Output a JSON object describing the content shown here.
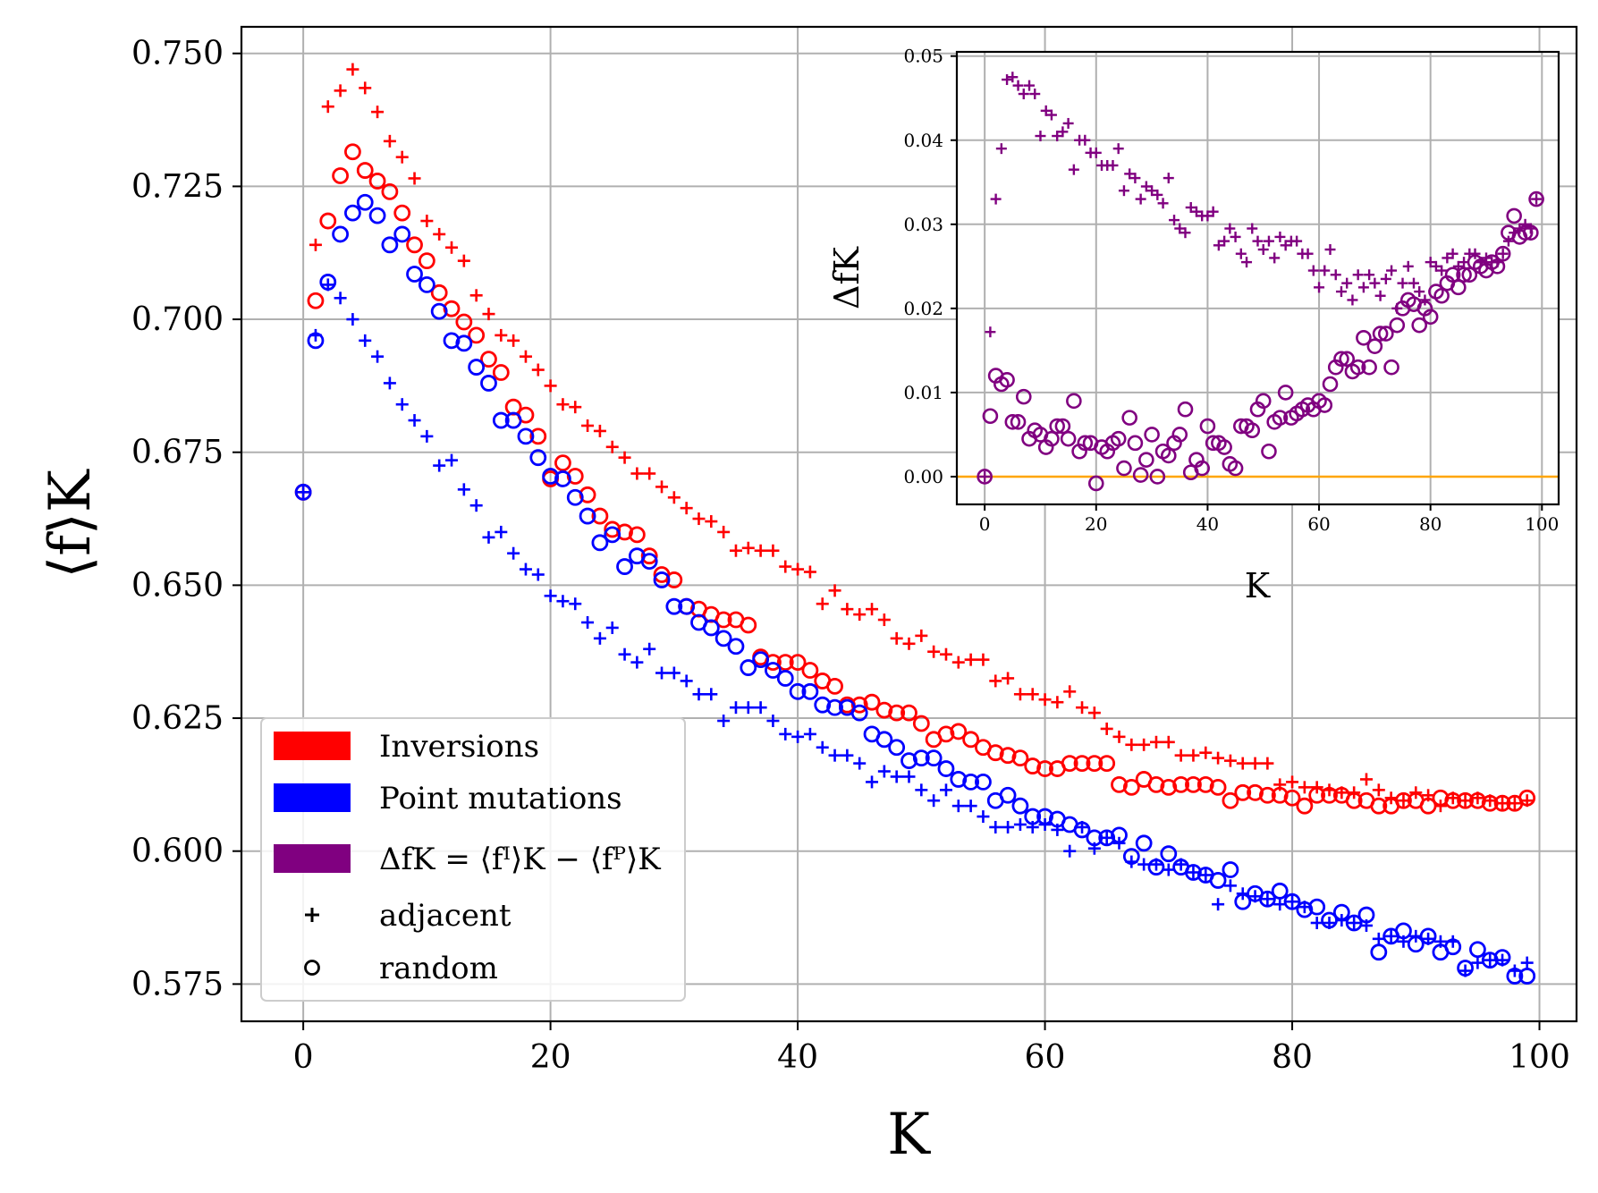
{
  "colors": {
    "inversions": "#ff0000",
    "point_mutations": "#0000ff",
    "difference": "#800080",
    "zero_line": "#ffa500"
  },
  "chart_data": [
    {
      "type": "scatter",
      "xlabel": "K",
      "ylabel": "⟨f⟩K",
      "xlim": [
        -5,
        103
      ],
      "ylim": [
        0.568,
        0.755
      ],
      "xticks": [
        "0",
        "20",
        "40",
        "60",
        "80",
        "100"
      ],
      "yticks": [
        "0.575",
        "0.600",
        "0.625",
        "0.650",
        "0.675",
        "0.700",
        "0.725",
        "0.750"
      ],
      "grid": true,
      "legend_position": "lower-left",
      "legend": [
        {
          "label": "Inversions",
          "marker": "patch",
          "color": "#ff0000"
        },
        {
          "label": "Point mutations",
          "marker": "patch",
          "color": "#0000ff"
        },
        {
          "label": "ΔfK = ⟨fᴵ⟩K − ⟨fᴾ⟩K",
          "marker": "patch",
          "color": "#800080"
        },
        {
          "label": "adjacent",
          "marker": "plus",
          "color": "#000000"
        },
        {
          "label": "random",
          "marker": "circle",
          "color": "#000000"
        }
      ],
      "x": [
        0,
        1,
        2,
        3,
        4,
        5,
        6,
        7,
        8,
        9,
        10,
        11,
        12,
        13,
        14,
        15,
        16,
        17,
        18,
        19,
        20,
        21,
        22,
        23,
        24,
        25,
        26,
        27,
        28,
        29,
        30,
        31,
        32,
        33,
        34,
        35,
        36,
        37,
        38,
        39,
        40,
        41,
        42,
        43,
        44,
        45,
        46,
        47,
        48,
        49,
        50,
        51,
        52,
        53,
        54,
        55,
        56,
        57,
        58,
        59,
        60,
        61,
        62,
        63,
        64,
        65,
        66,
        67,
        68,
        69,
        70,
        71,
        72,
        73,
        74,
        75,
        76,
        77,
        78,
        79,
        80,
        81,
        82,
        83,
        84,
        85,
        86,
        87,
        88,
        89,
        90,
        91,
        92,
        93,
        94,
        95,
        96,
        97,
        98,
        99
      ],
      "series": [
        {
          "color": "#ff0000",
          "marker": "plus",
          "values": [
            0.6675,
            0.714,
            0.74,
            0.743,
            0.747,
            0.7435,
            0.739,
            0.7335,
            0.7305,
            0.7265,
            0.7185,
            0.716,
            0.7135,
            0.711,
            0.7045,
            0.701,
            0.697,
            0.696,
            0.693,
            0.6905,
            0.6875,
            0.684,
            0.6835,
            0.68,
            0.679,
            0.676,
            0.674,
            0.671,
            0.671,
            0.6685,
            0.6665,
            0.6645,
            0.6625,
            0.662,
            0.66,
            0.6565,
            0.657,
            0.6565,
            0.6565,
            0.6535,
            0.653,
            0.6525,
            0.6465,
            0.649,
            0.6455,
            0.6445,
            0.6455,
            0.6435,
            0.64,
            0.639,
            0.6405,
            0.6375,
            0.637,
            0.6355,
            0.636,
            0.636,
            0.632,
            0.6325,
            0.6295,
            0.6295,
            0.6285,
            0.628,
            0.63,
            0.627,
            0.626,
            0.623,
            0.6215,
            0.62,
            0.62,
            0.6205,
            0.6205,
            0.618,
            0.618,
            0.6185,
            0.6175,
            0.617,
            0.6165,
            0.6165,
            0.6165,
            0.6125,
            0.613,
            0.612,
            0.612,
            0.6115,
            0.611,
            0.611,
            0.6135,
            0.6115,
            0.61,
            0.6095,
            0.611,
            0.6105,
            0.6085,
            0.61,
            0.6095,
            0.61,
            0.6095,
            0.609,
            0.609,
            0.6095
          ]
        },
        {
          "color": "#ff0000",
          "marker": "circle",
          "values": [
            0.6675,
            0.7035,
            0.7185,
            0.727,
            0.7315,
            0.728,
            0.726,
            0.724,
            0.72,
            0.714,
            0.711,
            0.705,
            0.702,
            0.6995,
            0.697,
            0.6925,
            0.69,
            0.6835,
            0.682,
            0.678,
            0.67,
            0.673,
            0.6705,
            0.667,
            0.663,
            0.6605,
            0.66,
            0.6595,
            0.6555,
            0.652,
            0.651,
            0.646,
            0.6455,
            0.6445,
            0.6435,
            0.6435,
            0.6425,
            0.6365,
            0.6355,
            0.6355,
            0.6355,
            0.634,
            0.632,
            0.631,
            0.6275,
            0.6275,
            0.628,
            0.6265,
            0.626,
            0.626,
            0.624,
            0.621,
            0.622,
            0.6225,
            0.621,
            0.6195,
            0.6185,
            0.618,
            0.6175,
            0.616,
            0.6155,
            0.6155,
            0.6165,
            0.6165,
            0.6165,
            0.6165,
            0.6125,
            0.612,
            0.6135,
            0.6125,
            0.612,
            0.6125,
            0.6125,
            0.6125,
            0.612,
            0.6095,
            0.611,
            0.611,
            0.6105,
            0.6105,
            0.61,
            0.6085,
            0.6105,
            0.6105,
            0.6105,
            0.6095,
            0.6095,
            0.6085,
            0.6085,
            0.6095,
            0.6095,
            0.6085,
            0.61,
            0.6095,
            0.6095,
            0.6095,
            0.609,
            0.609,
            0.609,
            0.61
          ]
        },
        {
          "color": "#0000ff",
          "marker": "plus",
          "values": [
            0.6675,
            0.697,
            0.7065,
            0.704,
            0.7,
            0.696,
            0.693,
            0.688,
            0.684,
            0.681,
            0.678,
            0.6725,
            0.6735,
            0.668,
            0.665,
            0.659,
            0.66,
            0.656,
            0.653,
            0.652,
            0.648,
            0.647,
            0.6465,
            0.643,
            0.64,
            0.642,
            0.637,
            0.6355,
            0.638,
            0.6335,
            0.6335,
            0.632,
            0.6295,
            0.6295,
            0.6245,
            0.627,
            0.627,
            0.627,
            0.6245,
            0.622,
            0.6215,
            0.622,
            0.6195,
            0.618,
            0.618,
            0.6165,
            0.613,
            0.615,
            0.614,
            0.614,
            0.6115,
            0.6095,
            0.6115,
            0.6085,
            0.6085,
            0.6065,
            0.6045,
            0.6045,
            0.605,
            0.6045,
            0.605,
            0.604,
            0.6,
            0.6045,
            0.6005,
            0.6025,
            0.6015,
            0.598,
            0.5975,
            0.5975,
            0.5965,
            0.5975,
            0.596,
            0.5955,
            0.59,
            0.5935,
            0.592,
            0.5915,
            0.591,
            0.59,
            0.5905,
            0.5895,
            0.5865,
            0.5865,
            0.587,
            0.5865,
            0.586,
            0.5835,
            0.584,
            0.583,
            0.584,
            0.5835,
            0.583,
            0.583,
            0.5775,
            0.579,
            0.5795,
            0.5795,
            0.5775,
            0.579
          ]
        },
        {
          "color": "#0000ff",
          "marker": "circle",
          "values": [
            0.6675,
            0.696,
            0.707,
            0.716,
            0.72,
            0.722,
            0.7195,
            0.714,
            0.716,
            0.7085,
            0.7065,
            0.7015,
            0.696,
            0.6955,
            0.691,
            0.688,
            0.681,
            0.681,
            0.678,
            0.674,
            0.6705,
            0.67,
            0.6665,
            0.663,
            0.658,
            0.6595,
            0.6535,
            0.6555,
            0.6545,
            0.651,
            0.646,
            0.646,
            0.643,
            0.642,
            0.64,
            0.6385,
            0.6345,
            0.636,
            0.634,
            0.6325,
            0.63,
            0.63,
            0.6275,
            0.627,
            0.627,
            0.626,
            0.622,
            0.621,
            0.6195,
            0.617,
            0.6175,
            0.6175,
            0.6155,
            0.6135,
            0.613,
            0.613,
            0.6095,
            0.6105,
            0.6085,
            0.6065,
            0.6065,
            0.606,
            0.605,
            0.604,
            0.6025,
            0.6025,
            0.603,
            0.599,
            0.6015,
            0.597,
            0.5995,
            0.597,
            0.596,
            0.5955,
            0.5945,
            0.5965,
            0.5905,
            0.592,
            0.591,
            0.5925,
            0.5905,
            0.589,
            0.5895,
            0.587,
            0.5885,
            0.5865,
            0.588,
            0.581,
            0.584,
            0.585,
            0.5825,
            0.584,
            0.581,
            0.582,
            0.578,
            0.5815,
            0.5795,
            0.58,
            0.5765,
            0.5765
          ]
        }
      ]
    },
    {
      "type": "scatter",
      "xlabel": "K",
      "ylabel": "ΔfK",
      "xlim": [
        -5,
        103
      ],
      "ylim": [
        -0.0033,
        0.0505
      ],
      "xticks": [
        "0",
        "20",
        "40",
        "60",
        "80",
        "100"
      ],
      "yticks": [
        "0.00",
        "0.01",
        "0.02",
        "0.03",
        "0.04",
        "0.05"
      ],
      "grid": true,
      "reference_line": {
        "y": 0.0,
        "color": "#ffa500"
      },
      "x": [
        0,
        1,
        2,
        3,
        4,
        5,
        6,
        7,
        8,
        9,
        10,
        11,
        12,
        13,
        14,
        15,
        16,
        17,
        18,
        19,
        20,
        21,
        22,
        23,
        24,
        25,
        26,
        27,
        28,
        29,
        30,
        31,
        32,
        33,
        34,
        35,
        36,
        37,
        38,
        39,
        40,
        41,
        42,
        43,
        44,
        45,
        46,
        47,
        48,
        49,
        50,
        51,
        52,
        53,
        54,
        55,
        56,
        57,
        58,
        59,
        60,
        61,
        62,
        63,
        64,
        65,
        66,
        67,
        68,
        69,
        70,
        71,
        72,
        73,
        74,
        75,
        76,
        77,
        78,
        79,
        80,
        81,
        82,
        83,
        84,
        85,
        86,
        87,
        88,
        89,
        90,
        91,
        92,
        93,
        94,
        95,
        96,
        97,
        98,
        99
      ],
      "series": [
        {
          "color": "#800080",
          "marker": "plus",
          "values": [
            0.0,
            0.0172,
            0.033,
            0.039,
            0.0472,
            0.0475,
            0.0465,
            0.0455,
            0.0465,
            0.0455,
            0.0405,
            0.0435,
            0.043,
            0.0405,
            0.041,
            0.042,
            0.0365,
            0.04,
            0.04,
            0.0385,
            0.0385,
            0.037,
            0.037,
            0.037,
            0.039,
            0.034,
            0.036,
            0.0355,
            0.033,
            0.0345,
            0.034,
            0.0335,
            0.0325,
            0.0355,
            0.0305,
            0.0295,
            0.029,
            0.032,
            0.0315,
            0.031,
            0.031,
            0.0315,
            0.0275,
            0.028,
            0.0295,
            0.0285,
            0.0265,
            0.0255,
            0.0295,
            0.028,
            0.027,
            0.028,
            0.026,
            0.0285,
            0.0275,
            0.028,
            0.028,
            0.0265,
            0.0265,
            0.0245,
            0.0225,
            0.0245,
            0.027,
            0.024,
            0.022,
            0.023,
            0.021,
            0.024,
            0.0225,
            0.024,
            0.023,
            0.0215,
            0.0235,
            0.0245,
            0.02,
            0.023,
            0.025,
            0.023,
            0.022,
            0.021,
            0.0255,
            0.025,
            0.0245,
            0.026,
            0.0265,
            0.025,
            0.0255,
            0.0265,
            0.0265,
            0.0255,
            0.026,
            0.0255,
            0.0255,
            0.0265,
            0.028,
            0.029,
            0.0295,
            0.03,
            0.0295,
            0.033
          ]
        },
        {
          "color": "#800080",
          "marker": "circle",
          "values": [
            0.0,
            0.0072,
            0.012,
            0.011,
            0.0115,
            0.0065,
            0.0065,
            0.0095,
            0.0045,
            0.0055,
            0.005,
            0.0035,
            0.0045,
            0.006,
            0.006,
            0.0045,
            0.009,
            0.003,
            0.004,
            0.004,
            -0.0008,
            0.0035,
            0.003,
            0.004,
            0.0045,
            0.001,
            0.007,
            0.004,
            0.0002,
            0.002,
            0.005,
            0.0,
            0.003,
            0.0025,
            0.004,
            0.005,
            0.008,
            0.0005,
            0.002,
            0.001,
            0.006,
            0.004,
            0.004,
            0.0035,
            0.0015,
            0.001,
            0.006,
            0.006,
            0.0055,
            0.008,
            0.009,
            0.003,
            0.0065,
            0.007,
            0.01,
            0.007,
            0.0075,
            0.008,
            0.0085,
            0.008,
            0.009,
            0.0085,
            0.011,
            0.013,
            0.014,
            0.014,
            0.0125,
            0.013,
            0.0165,
            0.013,
            0.0155,
            0.017,
            0.017,
            0.013,
            0.018,
            0.02,
            0.021,
            0.0205,
            0.018,
            0.02,
            0.019,
            0.022,
            0.0215,
            0.023,
            0.024,
            0.0225,
            0.024,
            0.024,
            0.0255,
            0.025,
            0.0245,
            0.0255,
            0.025,
            0.0265,
            0.029,
            0.031,
            0.0285,
            0.029,
            0.029,
            0.033
          ]
        }
      ]
    }
  ]
}
